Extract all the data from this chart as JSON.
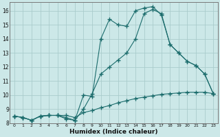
{
  "xlabel": "Humidex (Indice chaleur)",
  "bg_color": "#cce8e8",
  "grid_color": "#aacccc",
  "line_color": "#1a6b6b",
  "xlim": [
    -0.5,
    23.5
  ],
  "ylim": [
    8,
    16.6
  ],
  "xticks": [
    0,
    1,
    2,
    3,
    4,
    5,
    6,
    7,
    8,
    9,
    10,
    11,
    12,
    13,
    14,
    15,
    16,
    17,
    18,
    19,
    20,
    21,
    22,
    23
  ],
  "yticks": [
    8,
    9,
    10,
    11,
    12,
    13,
    14,
    15,
    16
  ],
  "line1_x": [
    0,
    1,
    2,
    3,
    4,
    5,
    6,
    7,
    8,
    9,
    10,
    11,
    12,
    13,
    14,
    15,
    16,
    17,
    18,
    19,
    20,
    21,
    22,
    23
  ],
  "line1_y": [
    8.5,
    8.4,
    8.2,
    8.5,
    8.55,
    8.55,
    8.55,
    8.4,
    8.75,
    8.9,
    9.1,
    9.25,
    9.45,
    9.6,
    9.75,
    9.85,
    9.95,
    10.05,
    10.1,
    10.15,
    10.2,
    10.2,
    10.2,
    10.1
  ],
  "line2_x": [
    0,
    1,
    2,
    3,
    4,
    5,
    6,
    7,
    8,
    9,
    10,
    11,
    12,
    13,
    14,
    15,
    16,
    17,
    18,
    19,
    20,
    21,
    22,
    23
  ],
  "line2_y": [
    8.5,
    8.4,
    8.2,
    8.5,
    8.55,
    8.55,
    8.4,
    8.2,
    9.0,
    10.1,
    11.5,
    12.0,
    12.5,
    13.0,
    14.0,
    15.8,
    16.1,
    15.8,
    13.6,
    13.0,
    12.4,
    12.1,
    11.5,
    10.1
  ],
  "line3_x": [
    0,
    1,
    2,
    3,
    4,
    5,
    6,
    7,
    8,
    9,
    10,
    11,
    12,
    13,
    14,
    15,
    16,
    17,
    18,
    19,
    20,
    21,
    22,
    23
  ],
  "line3_y": [
    8.5,
    8.4,
    8.2,
    8.5,
    8.55,
    8.55,
    8.3,
    8.2,
    10.0,
    9.9,
    14.0,
    15.4,
    15.0,
    14.9,
    16.0,
    16.2,
    16.3,
    15.7,
    13.6,
    13.0,
    12.4,
    12.1,
    11.5,
    10.1
  ]
}
